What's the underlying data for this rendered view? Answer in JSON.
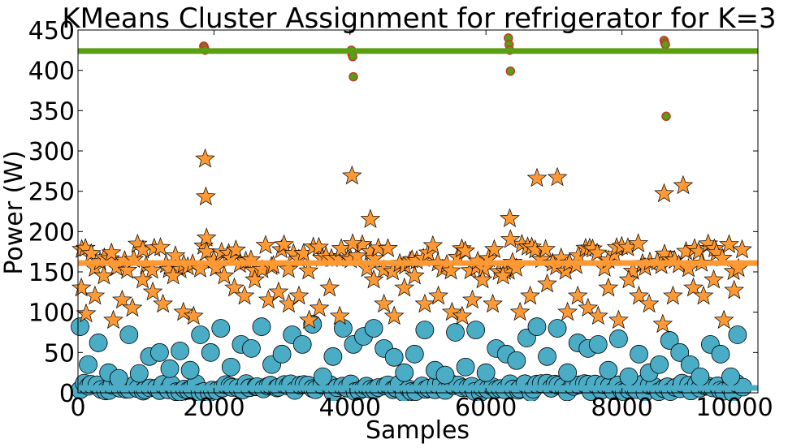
{
  "chart_data": {
    "type": "scatter",
    "title": "KMeans Cluster Assignment for refrigerator for K=3",
    "xlabel": "Samples",
    "ylabel": "Power (W)",
    "xlim": [
      0,
      10000
    ],
    "ylim": [
      0,
      450
    ],
    "x_ticks": [
      "0",
      "2000",
      "4000",
      "6000",
      "8000",
      "10000"
    ],
    "y_ticks": [
      "0",
      "50",
      "100",
      "150",
      "200",
      "250",
      "300",
      "350",
      "400",
      "450"
    ],
    "x_tick_values": [
      0,
      2000,
      4000,
      6000,
      8000,
      10000
    ],
    "y_tick_values": [
      0,
      50,
      100,
      150,
      200,
      250,
      300,
      350,
      400,
      450
    ],
    "grid": false,
    "legend": "none",
    "centroid_lines": [
      {
        "y": 424,
        "color": "#5a9e12"
      },
      {
        "y": 161,
        "color": "#ff9933"
      },
      {
        "y": 6,
        "color": "#4bacc6"
      }
    ],
    "series": [
      {
        "marker": "circle-small",
        "color": "#5a9e12",
        "edge_color": "#c0392b",
        "x": [
          1850,
          1860,
          1870,
          4020,
          4030,
          4040,
          4050,
          6330,
          6340,
          6350,
          6360,
          8620,
          8630,
          8640,
          8650
        ],
        "y": [
          430,
          428,
          425,
          425,
          420,
          417,
          392,
          440,
          432,
          425,
          399,
          437,
          434,
          432,
          343
        ]
      },
      {
        "marker": "star",
        "color": "#ff9933",
        "edge_color": "#000000",
        "band": {
          "x_min": 0,
          "x_max": 9800,
          "y_min": 150,
          "y_max": 185,
          "count": 140
        },
        "x": [
          50,
          120,
          250,
          380,
          520,
          650,
          800,
          950,
          1100,
          1250,
          1400,
          1550,
          1700,
          1870,
          1880,
          1890,
          2150,
          2300,
          2450,
          2600,
          2800,
          2950,
          3100,
          3250,
          3400,
          3550,
          3700,
          3850,
          4030,
          4040,
          4300,
          4350,
          4500,
          4650,
          4800,
          4950,
          5100,
          5300,
          5500,
          5650,
          5800,
          5950,
          6100,
          6250,
          6350,
          6360,
          6500,
          6650,
          6750,
          6900,
          7050,
          7200,
          7350,
          7500,
          7650,
          7800,
          7950,
          8100,
          8250,
          8400,
          8600,
          8620,
          8750,
          8900,
          9050,
          9200,
          9350,
          9500,
          9650
        ],
        "y": [
          130,
          98,
          120,
          145,
          90,
          115,
          105,
          140,
          125,
          110,
          145,
          100,
          95,
          290,
          243,
          192,
          145,
          130,
          120,
          140,
          115,
          125,
          110,
          120,
          90,
          105,
          130,
          95,
          269,
          185,
          215,
          140,
          110,
          95,
          130,
          145,
          110,
          120,
          100,
          95,
          115,
          140,
          110,
          145,
          216,
          190,
          100,
          120,
          266,
          135,
          267,
          100,
          120,
          105,
          95,
          130,
          90,
          140,
          120,
          110,
          85,
          247,
          120,
          257,
          130,
          120,
          140,
          90,
          127
        ]
      },
      {
        "marker": "circle-large",
        "color": "#4bacc6",
        "edge_color": "#000000",
        "band": {
          "x_min": 0,
          "x_max": 9800,
          "y_min": 0,
          "y_max": 12,
          "count": 160
        },
        "x": [
          30,
          150,
          300,
          450,
          600,
          750,
          900,
          1050,
          1200,
          1350,
          1500,
          1650,
          1800,
          1950,
          2100,
          2250,
          2400,
          2550,
          2700,
          2850,
          3000,
          3150,
          3300,
          3450,
          3600,
          3750,
          3900,
          4050,
          4200,
          4350,
          4500,
          4650,
          4800,
          4950,
          5100,
          5250,
          5400,
          5550,
          5700,
          5850,
          6000,
          6150,
          6300,
          6450,
          6600,
          6750,
          6900,
          7050,
          7200,
          7350,
          7500,
          7650,
          7800,
          7950,
          8100,
          8250,
          8400,
          8550,
          8700,
          8850,
          9000,
          9150,
          9300,
          9450,
          9600,
          9700
        ],
        "y": [
          82,
          35,
          62,
          25,
          18,
          72,
          24,
          45,
          50,
          30,
          52,
          28,
          72,
          50,
          80,
          32,
          60,
          55,
          82,
          35,
          48,
          72,
          60,
          85,
          20,
          45,
          80,
          60,
          70,
          80,
          55,
          44,
          25,
          48,
          78,
          28,
          22,
          75,
          32,
          78,
          25,
          55,
          48,
          40,
          68,
          82,
          45,
          80,
          25,
          62,
          55,
          60,
          28,
          67,
          20,
          48,
          25,
          35,
          65,
          50,
          35,
          20,
          60,
          48,
          20,
          72
        ]
      }
    ]
  }
}
